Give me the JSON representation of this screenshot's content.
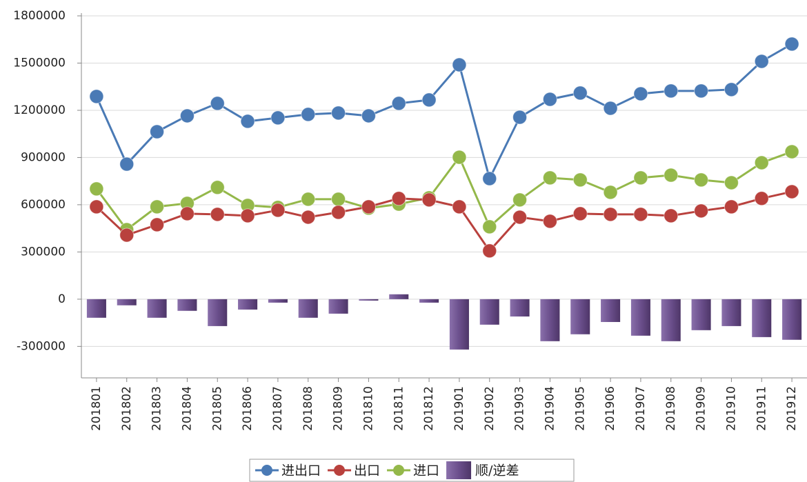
{
  "chart_data": {
    "type": "combo",
    "categories": [
      "201801",
      "201802",
      "201803",
      "201804",
      "201805",
      "201806",
      "201807",
      "201808",
      "201809",
      "201810",
      "201811",
      "201812",
      "201901",
      "201902",
      "201903",
      "201904",
      "201905",
      "201906",
      "201907",
      "201908",
      "201909",
      "201910",
      "201911",
      "201912"
    ],
    "ylim": [
      -500000,
      1800000
    ],
    "yticks": [
      -300000,
      0,
      300000,
      600000,
      900000,
      1200000,
      1500000,
      1800000
    ],
    "grid": true,
    "legend": "bottom",
    "series": [
      {
        "name": "进出口",
        "type": "line",
        "color": "#4a7ab5",
        "values": [
          1288000,
          858000,
          1064000,
          1165000,
          1244000,
          1130000,
          1152000,
          1174000,
          1183000,
          1165000,
          1244000,
          1266000,
          1489000,
          766000,
          1156000,
          1270000,
          1310000,
          1213000,
          1305000,
          1323000,
          1323000,
          1332000,
          1511000,
          1621000
        ]
      },
      {
        "name": "出口",
        "type": "line",
        "color": "#b9413d",
        "values": [
          587000,
          407000,
          473000,
          543000,
          539000,
          530000,
          565000,
          521000,
          552000,
          587000,
          640000,
          631000,
          587000,
          307000,
          521000,
          495000,
          543000,
          539000,
          539000,
          530000,
          561000,
          587000,
          640000,
          683000
        ]
      },
      {
        "name": "进口",
        "type": "line",
        "color": "#94b84a",
        "values": [
          701000,
          442000,
          587000,
          609000,
          710000,
          596000,
          583000,
          635000,
          635000,
          578000,
          604000,
          644000,
          902000,
          460000,
          631000,
          771000,
          758000,
          679000,
          771000,
          788000,
          758000,
          740000,
          867000,
          937000
        ]
      },
      {
        "name": "顺/逆差",
        "type": "bar",
        "color": "#6b4f8c",
        "values": [
          -118000,
          -39000,
          -118000,
          -74000,
          -171000,
          -66000,
          -22000,
          -118000,
          -92000,
          -9000,
          31000,
          -22000,
          -320000,
          -162000,
          -110000,
          -267000,
          -223000,
          -145000,
          -232000,
          -267000,
          -197000,
          -171000,
          -241000,
          -258000
        ]
      }
    ]
  }
}
